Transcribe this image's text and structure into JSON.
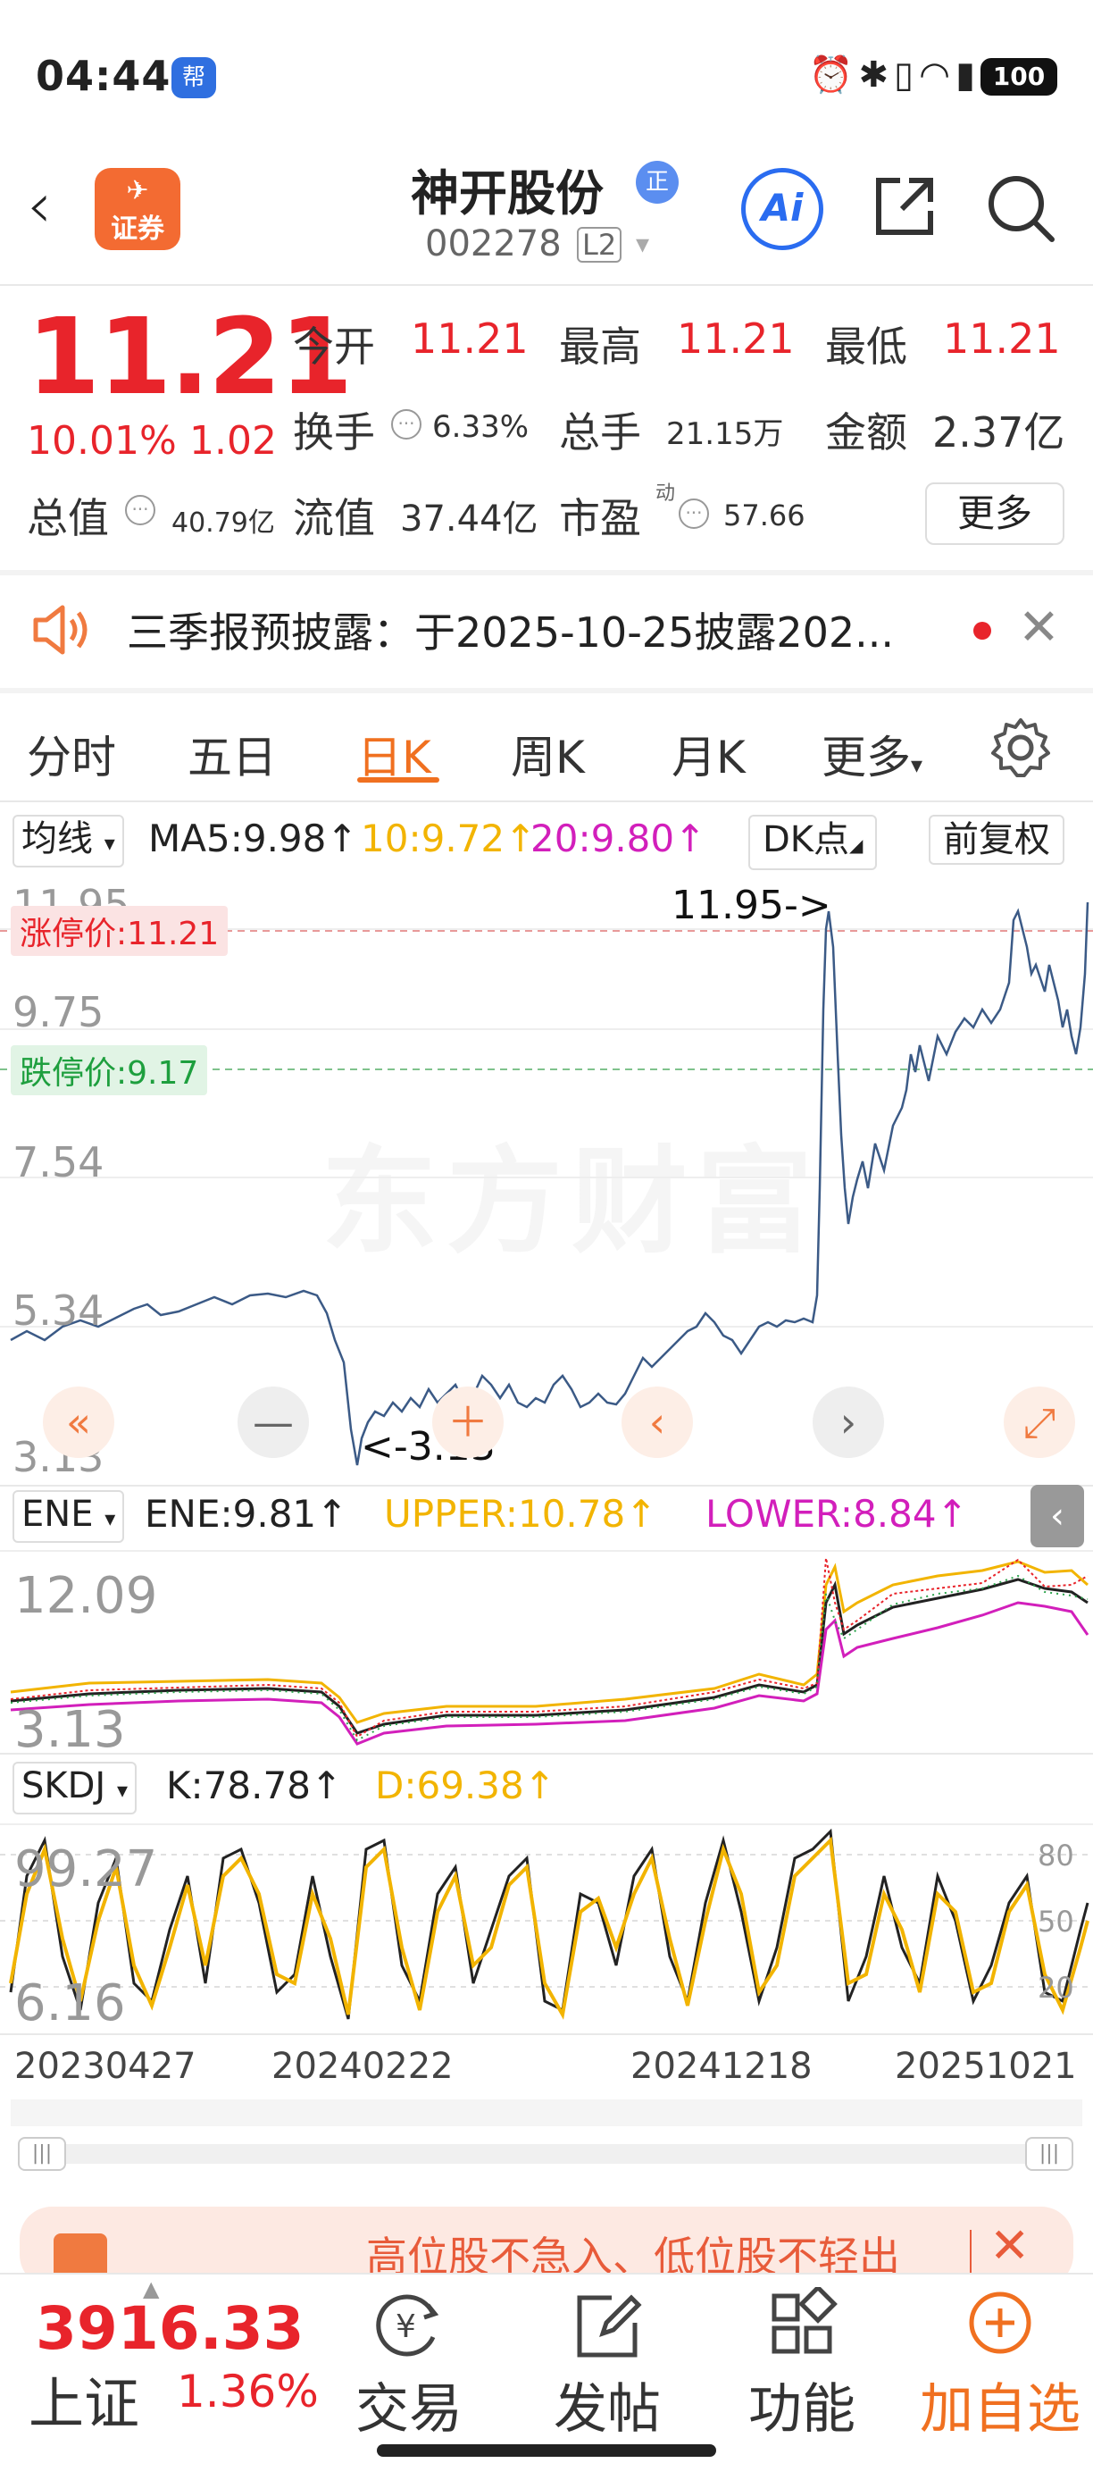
{
  "status_bar": {
    "time": "04:44",
    "battery": "100"
  },
  "header": {
    "back_icon": "chevron-left-icon",
    "broker_label": "证券",
    "stock_name": "神开股份",
    "stock_tag": "正",
    "stock_code": "002278",
    "level": "L2",
    "ai_label": "Ai"
  },
  "quote": {
    "price": "11.21",
    "change_pct": "10.01%",
    "change_abs": "1.02",
    "open_label": "今开",
    "open": "11.21",
    "high_label": "最高",
    "high": "11.21",
    "low_label": "最低",
    "low": "11.21",
    "turnover_label": "换手",
    "turnover": "6.33%",
    "volume_label": "总手",
    "volume": "21.15万",
    "amount_label": "金额",
    "amount": "2.37亿",
    "mktcap_label": "总值",
    "mktcap": "40.79亿",
    "float_label": "流值",
    "float": "37.44亿",
    "pe_label": "市盈",
    "pe_sup": "动",
    "pe": "57.66",
    "more_label": "更多"
  },
  "notice": {
    "text": "三季报预披露：于2025-10-25披露202..."
  },
  "tabs": {
    "items": [
      "分时",
      "五日",
      "日K",
      "周K",
      "月K",
      "更多"
    ],
    "active": "日K"
  },
  "ma_row": {
    "select": "均线",
    "ma5": "MA5:9.98↑",
    "ma10": "10:9.72↑",
    "ma20": "20:9.80↑",
    "dk_label": "DK点",
    "adjust_label": "前复权"
  },
  "main_chart": {
    "y_labels": [
      "11.95",
      "9.75",
      "7.54",
      "5.34",
      "3.13"
    ],
    "limit_up": "涨停价:11.21",
    "limit_down": "跌停价:9.17",
    "high_note": "11.95->",
    "low_note": "<-3.13",
    "watermark": "东方财富"
  },
  "ene_row": {
    "select": "ENE",
    "ene": "ENE:9.81↑",
    "upper": "UPPER:10.78↑",
    "lower": "LOWER:8.84↑",
    "y_max": "12.09",
    "y_min": "3.13"
  },
  "kdj_row": {
    "select": "SKDJ",
    "k": "K:78.78↑",
    "d": "D:69.38↑",
    "y_max": "99.27",
    "y_min": "6.16",
    "ref_80": "80",
    "ref_50": "50",
    "ref_20": "20"
  },
  "dates": [
    "20230427",
    "20240222",
    "20241218",
    "20251021"
  ],
  "promo": {
    "text": "高位股不急入、低位股不轻出"
  },
  "bottom_nav": {
    "index_price": "3916.33",
    "index_name": "上证",
    "index_pct": "1.36%",
    "items": [
      "交易",
      "发帖",
      "功能",
      "加自选"
    ]
  },
  "colors": {
    "rise": "#e8242b",
    "fall": "#2aa34a",
    "accent": "#f07020",
    "ma10": "#f2b400",
    "ma20": "#d21fbb",
    "price_line": "#3b5a86"
  }
}
